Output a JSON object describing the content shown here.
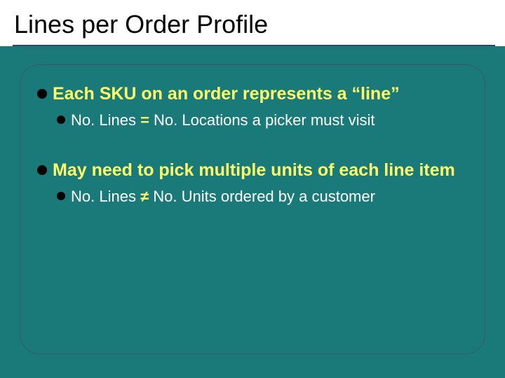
{
  "slide": {
    "title": "Lines per Order Profile",
    "background_color": "#1a7a7a",
    "title_bar_bg": "#ffffff",
    "title_color": "#000000",
    "title_fontsize": 36,
    "underline_color": "#2b4a6b",
    "box_border_color": "#3a5a6a",
    "box_border_radius": 28,
    "bullet_dot_color": "#000000",
    "l1_text_color": "#ffff66",
    "l1_fontsize": 25,
    "l2_text_color": "#ffffff",
    "l2_fontsize": 22,
    "accent_color": "#ffff66",
    "bullets": [
      {
        "level": 1,
        "text": "Each SKU on an order represents a “line”"
      },
      {
        "level": 2,
        "prefix": "No. Lines ",
        "accent": "=",
        "suffix": " No. Locations a picker must visit"
      },
      {
        "level": 1,
        "text": "May need to pick multiple units of each line item"
      },
      {
        "level": 2,
        "prefix": "No. Lines ",
        "accent": "≠",
        "suffix": " No. Units ordered by a customer"
      }
    ]
  }
}
